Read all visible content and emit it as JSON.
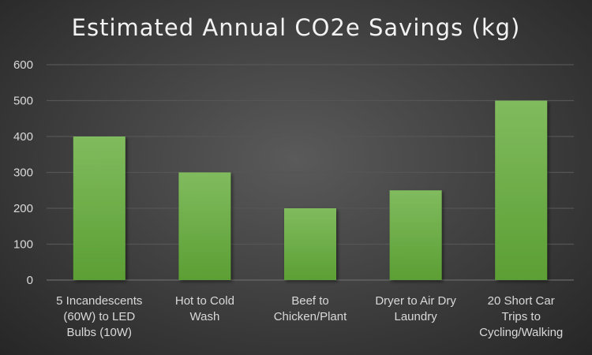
{
  "chart_data": {
    "type": "bar",
    "title": "Estimated Annual CO2e Savings (kg)",
    "categories": [
      [
        "5 Incandescents",
        "(60W) to LED",
        "Bulbs (10W)"
      ],
      [
        "Hot to Cold",
        "Wash"
      ],
      [
        "Beef to",
        "Chicken/Plant"
      ],
      [
        "Dryer to Air Dry",
        "Laundry"
      ],
      [
        "20 Short Car",
        "Trips to",
        "Cycling/Walking"
      ]
    ],
    "values": [
      400,
      300,
      200,
      250,
      500
    ],
    "ylim": [
      0,
      600
    ],
    "yticks": [
      0,
      100,
      200,
      300,
      400,
      500,
      600
    ],
    "grid": true,
    "bar_color_top": "#80bb5e",
    "bar_color_bottom": "#5c9f34"
  }
}
